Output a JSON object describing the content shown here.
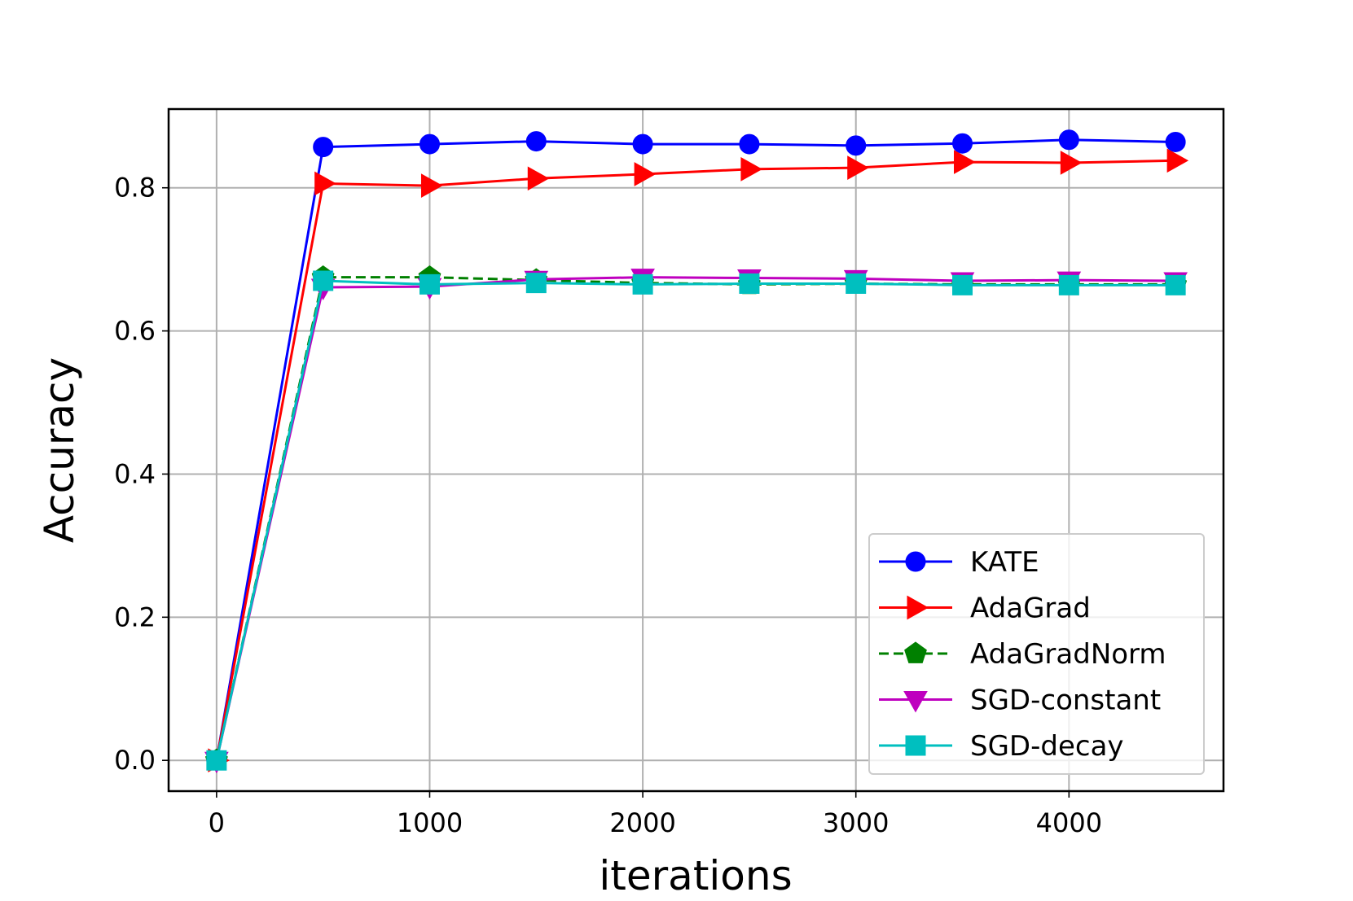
{
  "chart_data": {
    "type": "line",
    "title": "",
    "xlabel": "iterations",
    "ylabel": "Accuracy",
    "xlim": [
      -225,
      4725
    ],
    "ylim": [
      -0.043,
      0.91
    ],
    "xticks": [
      0,
      1000,
      2000,
      3000,
      4000
    ],
    "xtick_labels": [
      "0",
      "1000",
      "2000",
      "3000",
      "4000"
    ],
    "yticks": [
      0.0,
      0.2,
      0.4,
      0.6,
      0.8
    ],
    "ytick_labels": [
      "0.0",
      "0.2",
      "0.4",
      "0.6",
      "0.8"
    ],
    "grid": true,
    "legend_position": "lower-right",
    "x": [
      0,
      500,
      1000,
      1500,
      2000,
      2500,
      3000,
      3500,
      4000,
      4500
    ],
    "series": [
      {
        "name": "KATE",
        "color": "#0000ff",
        "marker": "circle",
        "linestyle": "solid",
        "values": [
          0.0,
          0.857,
          0.861,
          0.865,
          0.861,
          0.861,
          0.859,
          0.862,
          0.867,
          0.864
        ]
      },
      {
        "name": "AdaGrad",
        "color": "#ff0000",
        "marker": "triangle-right",
        "linestyle": "solid",
        "values": [
          0.0,
          0.806,
          0.803,
          0.813,
          0.819,
          0.826,
          0.828,
          0.836,
          0.835,
          0.838
        ]
      },
      {
        "name": "AdaGradNorm",
        "color": "#008000",
        "marker": "pentagon",
        "linestyle": "dashed",
        "values": [
          0.0,
          0.675,
          0.675,
          0.671,
          0.667,
          0.665,
          0.666,
          0.665,
          0.665,
          0.665
        ]
      },
      {
        "name": "SGD-constant",
        "color": "#bf00bf",
        "marker": "triangle-down",
        "linestyle": "solid",
        "values": [
          0.0,
          0.661,
          0.662,
          0.672,
          0.675,
          0.674,
          0.673,
          0.67,
          0.671,
          0.67
        ]
      },
      {
        "name": "SGD-decay",
        "color": "#00bfbf",
        "marker": "square",
        "linestyle": "solid",
        "values": [
          0.0,
          0.67,
          0.665,
          0.667,
          0.665,
          0.666,
          0.666,
          0.664,
          0.664,
          0.664
        ]
      }
    ]
  }
}
